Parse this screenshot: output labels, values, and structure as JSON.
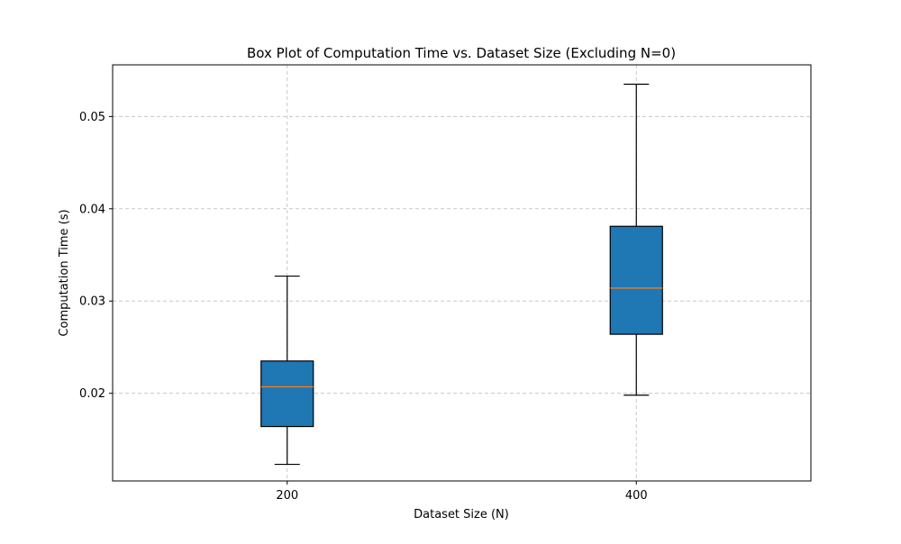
{
  "chart_data": {
    "type": "box",
    "title": "Box Plot of Computation Time vs. Dataset Size (Excluding N=0)",
    "xlabel": "Dataset Size (N)",
    "ylabel": "Computation Time (s)",
    "categories": [
      "200",
      "400"
    ],
    "ylim": [
      0.0105,
      0.0556
    ],
    "yticks": [
      0.02,
      0.03,
      0.04,
      0.05
    ],
    "ytick_labels": [
      "0.02",
      "0.03",
      "0.04",
      "0.05"
    ],
    "grid": true,
    "boxes": [
      {
        "category": "200",
        "whisker_low": 0.0123,
        "q1": 0.0164,
        "median": 0.0207,
        "q3": 0.0235,
        "whisker_high": 0.0327
      },
      {
        "category": "400",
        "whisker_low": 0.0198,
        "q1": 0.0264,
        "median": 0.0314,
        "q3": 0.0381,
        "whisker_high": 0.0535
      }
    ],
    "colors": {
      "box_fill": "#1f77b4",
      "median": "#ff7f0e",
      "edge": "#000000",
      "grid": "#c8c8c8"
    }
  }
}
